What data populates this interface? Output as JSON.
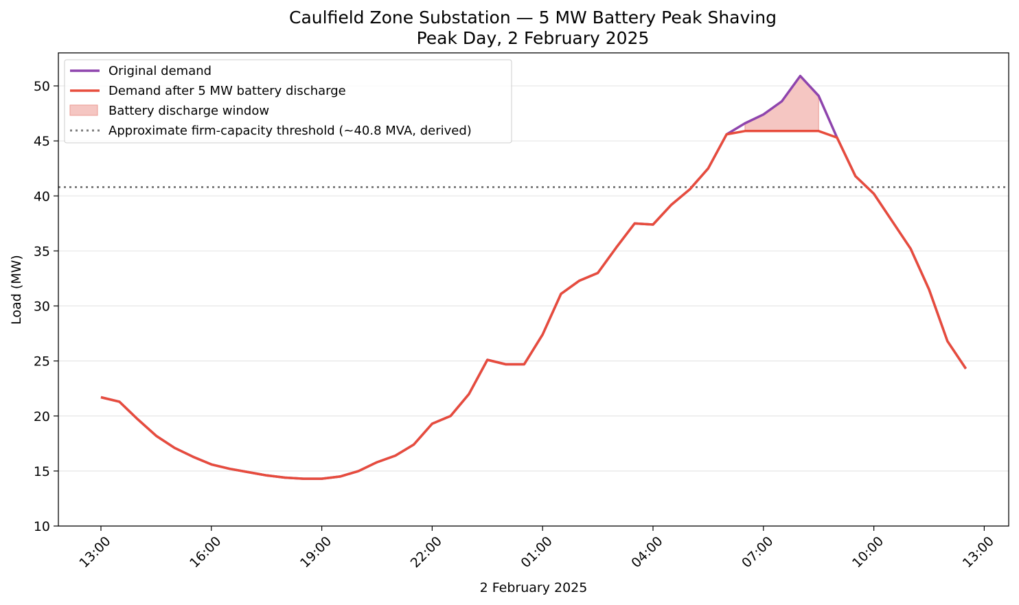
{
  "chart_data": {
    "type": "line",
    "title": "Caulfield Zone Substation — 5 MW Battery Peak Shaving",
    "subtitle": "Peak Day, 2 February 2025",
    "xlabel": "2 February 2025",
    "ylabel": "Load (MW)",
    "ylim": [
      10,
      53
    ],
    "yticks": [
      10,
      15,
      20,
      25,
      30,
      35,
      40,
      45,
      50
    ],
    "grid": "horizontal",
    "legend_position": "top-left",
    "x_tick_labels": [
      "13:00",
      "16:00",
      "19:00",
      "22:00",
      "01:00",
      "04:00",
      "07:00",
      "10:00",
      "13:00"
    ],
    "x": [
      "13:00",
      "13:30",
      "14:00",
      "14:30",
      "15:00",
      "15:30",
      "16:00",
      "16:30",
      "17:00",
      "17:30",
      "18:00",
      "18:30",
      "19:00",
      "19:30",
      "20:00",
      "20:30",
      "21:00",
      "21:30",
      "22:00",
      "22:30",
      "23:00",
      "23:30",
      "00:00",
      "00:30",
      "01:00",
      "01:30",
      "02:00",
      "02:30",
      "03:00",
      "03:30",
      "04:00",
      "04:30",
      "05:00",
      "05:30",
      "06:00",
      "06:30",
      "07:00",
      "07:30",
      "08:00",
      "08:30",
      "09:00",
      "09:30",
      "10:00",
      "10:30",
      "11:00",
      "11:30",
      "12:00",
      "12:30"
    ],
    "series": [
      {
        "name": "Original demand",
        "color": "#8e44ad",
        "values": [
          21.7,
          21.3,
          19.7,
          18.2,
          17.1,
          16.3,
          15.6,
          15.2,
          14.9,
          14.6,
          14.4,
          14.3,
          14.3,
          14.5,
          15.0,
          15.8,
          16.4,
          17.4,
          19.3,
          20.0,
          22.0,
          25.1,
          24.7,
          24.7,
          27.4,
          31.1,
          32.3,
          33.0,
          35.3,
          37.5,
          37.4,
          39.2,
          40.6,
          42.5,
          45.6,
          46.6,
          47.4,
          48.6,
          50.9,
          49.1,
          45.3,
          41.8,
          40.2,
          37.7,
          35.2,
          31.5,
          26.8,
          24.3
        ]
      },
      {
        "name": "Demand after 5 MW battery discharge",
        "color": "#e74c3c",
        "values": [
          21.7,
          21.3,
          19.7,
          18.2,
          17.1,
          16.3,
          15.6,
          15.2,
          14.9,
          14.6,
          14.4,
          14.3,
          14.3,
          14.5,
          15.0,
          15.8,
          16.4,
          17.4,
          19.3,
          20.0,
          22.0,
          25.1,
          24.7,
          24.7,
          27.4,
          31.1,
          32.3,
          33.0,
          35.3,
          37.5,
          37.4,
          39.2,
          40.6,
          42.5,
          45.6,
          45.9,
          45.9,
          45.9,
          45.9,
          45.9,
          45.3,
          41.8,
          40.2,
          37.7,
          35.2,
          31.5,
          26.8,
          24.3
        ]
      }
    ],
    "fill_region": {
      "name": "Battery discharge window",
      "color": "#f5c6c2",
      "edge_color": "#eb9a92",
      "start_index": 35,
      "end_index": 39
    },
    "threshold": {
      "name": "Approximate firm-capacity threshold (~40.8 MVA, derived)",
      "value": 40.8,
      "color": "#7f7f7f"
    }
  }
}
